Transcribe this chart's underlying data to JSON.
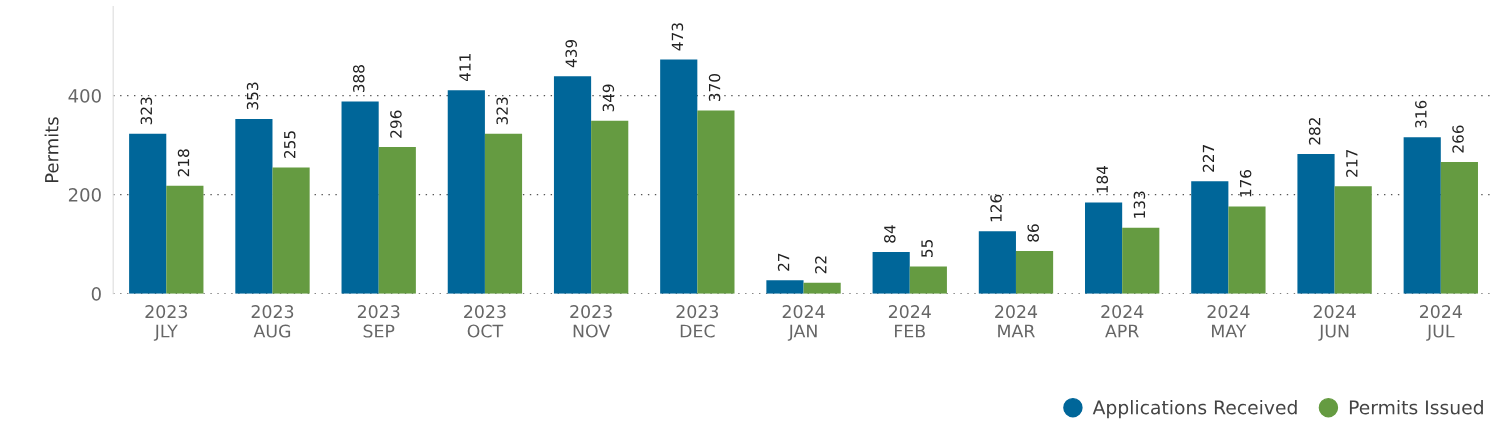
{
  "chart_data": {
    "type": "bar",
    "ylabel": "Permits",
    "categories": [
      "2023\nJLY",
      "2023\nAUG",
      "2023\nSEP",
      "2023\nOCT",
      "2023\nNOV",
      "2023\nDEC",
      "2024\nJAN",
      "2024\nFEB",
      "2024\nMAR",
      "2024\nAPR",
      "2024\nMAY",
      "2024\nJUN",
      "2024\nJUL"
    ],
    "series": [
      {
        "name": "Applications Received",
        "color": "#006699",
        "values": [
          323,
          353,
          388,
          411,
          439,
          473,
          27,
          84,
          126,
          184,
          227,
          282,
          316
        ]
      },
      {
        "name": "Permits Issued",
        "color": "#659b41",
        "values": [
          218,
          255,
          296,
          323,
          349,
          370,
          22,
          55,
          86,
          133,
          176,
          217,
          266
        ]
      }
    ],
    "yticks": [
      0,
      200,
      400
    ],
    "ylim": [
      0,
      580
    ],
    "grid": "y",
    "legend": "bottom right",
    "data_labels": true
  }
}
